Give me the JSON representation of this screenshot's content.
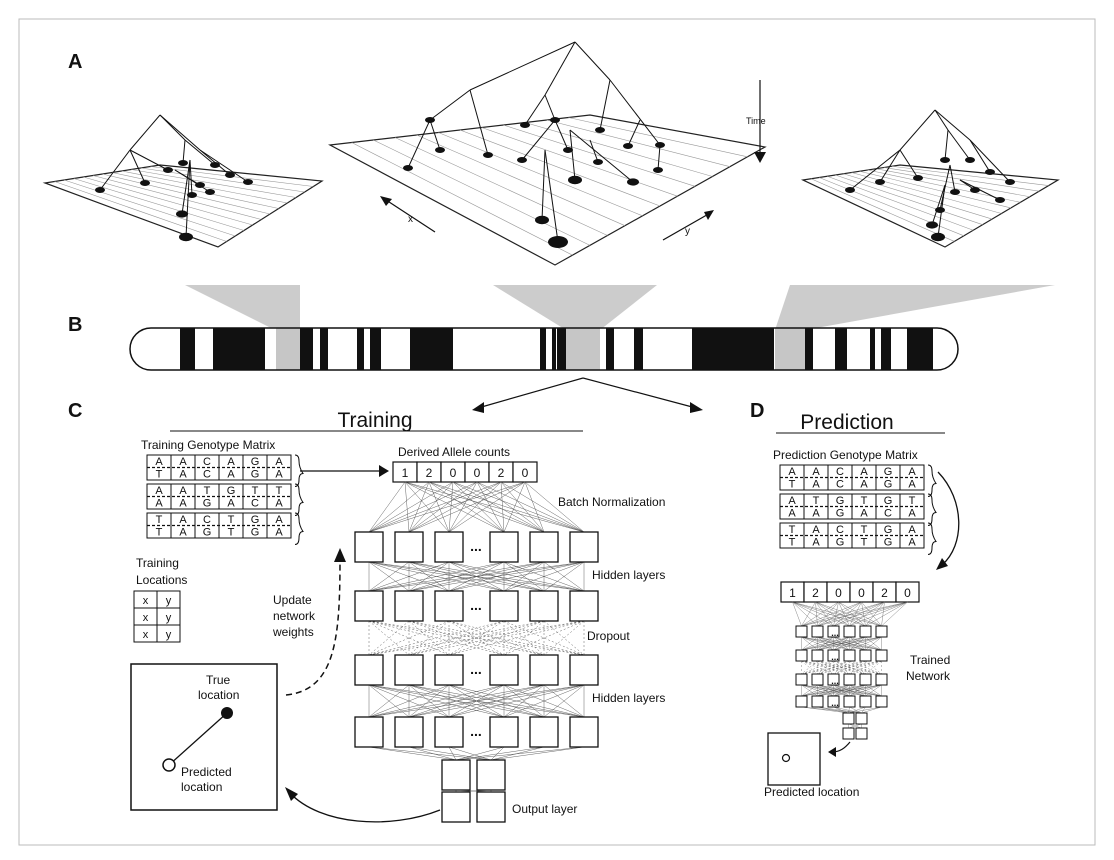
{
  "panel_labels": {
    "a": "A",
    "b": "B",
    "c": "C",
    "d": "D"
  },
  "panel_a": {
    "time_label": "Time",
    "x_label": "x",
    "y_label": "y"
  },
  "training": {
    "title": "Training",
    "genotype_title": "Training Genotype Matrix",
    "genotype_rows": [
      [
        "A",
        "A",
        "C",
        "A",
        "G",
        "A"
      ],
      [
        "T",
        "A",
        "C",
        "A",
        "G",
        "A"
      ],
      [
        "A",
        "A",
        "T",
        "G",
        "T",
        "T"
      ],
      [
        "A",
        "A",
        "G",
        "A",
        "C",
        "A"
      ],
      [
        "T",
        "A",
        "C",
        "T",
        "G",
        "A"
      ],
      [
        "T",
        "A",
        "G",
        "T",
        "G",
        "A"
      ]
    ],
    "locations_title_1": "Training",
    "locations_title_2": "Locations",
    "locations_rows": [
      [
        "x",
        "y"
      ],
      [
        "x",
        "y"
      ],
      [
        "x",
        "y"
      ]
    ],
    "allele_title": "Derived Allele counts",
    "allele_counts": [
      "1",
      "2",
      "0",
      "0",
      "2",
      "0"
    ],
    "batch_norm": "Batch Normalization",
    "hidden_layers_1": "Hidden layers",
    "dropout": "Dropout",
    "hidden_layers_2": "Hidden layers",
    "output_layer": "Output layer",
    "ellipsis": "...",
    "update_1": "Update",
    "update_2": "network",
    "update_3": "weights",
    "true_loc_1": "True",
    "true_loc_2": "location",
    "pred_loc_1": "Predicted",
    "pred_loc_2": "location"
  },
  "prediction": {
    "title": "Prediction",
    "genotype_title": "Prediction Genotype Matrix",
    "genotype_rows": [
      [
        "A",
        "A",
        "C",
        "A",
        "G",
        "A"
      ],
      [
        "T",
        "A",
        "C",
        "A",
        "G",
        "A"
      ],
      [
        "A",
        "T",
        "G",
        "T",
        "G",
        "T"
      ],
      [
        "A",
        "A",
        "G",
        "A",
        "C",
        "A"
      ],
      [
        "T",
        "A",
        "C",
        "T",
        "G",
        "A"
      ],
      [
        "T",
        "A",
        "G",
        "T",
        "G",
        "A"
      ]
    ],
    "allele_counts": [
      "1",
      "2",
      "0",
      "0",
      "2",
      "0"
    ],
    "trained_1": "Trained",
    "trained_2": "Network",
    "predicted_location": "Predicted location"
  }
}
